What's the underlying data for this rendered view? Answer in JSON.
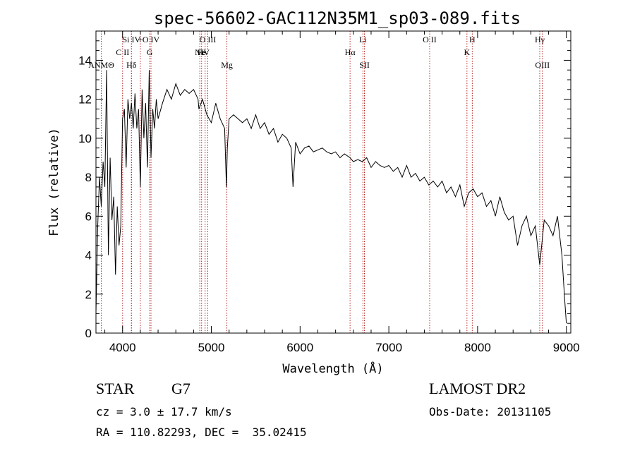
{
  "chart_data": {
    "type": "line",
    "title": "spec-56602-GAC112N35M1_sp03-089.fits",
    "xlabel": "Wavelength (Å)",
    "ylabel": "Flux (relative)",
    "xlim": [
      3700,
      9050
    ],
    "ylim": [
      0,
      15.5
    ],
    "xticks": [
      4000,
      5000,
      6000,
      7000,
      8000,
      9000
    ],
    "yticks": [
      0,
      2,
      4,
      6,
      8,
      10,
      12,
      14
    ],
    "grid": false,
    "series": [
      {
        "x": [
          3700,
          3720,
          3740,
          3760,
          3780,
          3800,
          3820,
          3840,
          3860,
          3880,
          3900,
          3920,
          3940,
          3960,
          3980,
          4000,
          4020,
          4040,
          4060,
          4080,
          4100,
          4120,
          4140,
          4160,
          4180,
          4200,
          4220,
          4240,
          4260,
          4280,
          4300,
          4320,
          4340,
          4360,
          4380,
          4400,
          4450,
          4500,
          4550,
          4600,
          4650,
          4700,
          4750,
          4800,
          4850,
          4860,
          4900,
          4950,
          5000,
          5050,
          5100,
          5150,
          5170,
          5180,
          5200,
          5250,
          5300,
          5350,
          5400,
          5450,
          5500,
          5550,
          5600,
          5650,
          5700,
          5750,
          5800,
          5850,
          5900,
          5920,
          5950,
          6000,
          6050,
          6100,
          6150,
          6200,
          6250,
          6300,
          6350,
          6400,
          6450,
          6500,
          6563,
          6600,
          6650,
          6700,
          6750,
          6800,
          6850,
          6900,
          6950,
          7000,
          7050,
          7100,
          7150,
          7200,
          7250,
          7300,
          7350,
          7400,
          7450,
          7500,
          7550,
          7600,
          7650,
          7700,
          7750,
          7800,
          7850,
          7900,
          7950,
          8000,
          8050,
          8100,
          8150,
          8200,
          8250,
          8300,
          8350,
          8400,
          8450,
          8500,
          8550,
          8600,
          8650,
          8700,
          8750,
          8800,
          8850,
          8900,
          8950,
          8980,
          9000
        ],
        "y": [
          1.0,
          5.5,
          8.0,
          6.5,
          8.8,
          7.5,
          13.5,
          4.0,
          9.0,
          5.8,
          7.0,
          3.0,
          6.5,
          4.5,
          5.5,
          11.0,
          11.5,
          8.5,
          12.0,
          11.0,
          11.8,
          10.5,
          12.3,
          10.5,
          11.5,
          7.5,
          12.5,
          10.0,
          11.8,
          8.5,
          13.5,
          9.0,
          11.5,
          10.5,
          12.0,
          11.0,
          11.8,
          12.5,
          12.0,
          12.8,
          12.2,
          12.5,
          12.3,
          12.5,
          12.0,
          11.5,
          12.0,
          11.2,
          10.8,
          11.8,
          11.0,
          10.5,
          7.5,
          9.5,
          11.0,
          11.2,
          11.0,
          10.8,
          11.0,
          10.5,
          11.2,
          10.5,
          10.8,
          10.2,
          10.5,
          9.8,
          10.2,
          10.0,
          9.5,
          7.5,
          9.8,
          9.2,
          9.5,
          9.6,
          9.3,
          9.4,
          9.5,
          9.3,
          9.2,
          9.3,
          9.0,
          9.2,
          9.0,
          8.8,
          8.9,
          8.8,
          9.0,
          8.5,
          8.8,
          8.6,
          8.5,
          8.6,
          8.3,
          8.5,
          8.0,
          8.6,
          8.0,
          8.2,
          7.8,
          8.0,
          7.6,
          7.8,
          7.5,
          7.8,
          7.2,
          7.5,
          7.0,
          7.6,
          6.5,
          7.2,
          7.4,
          7.0,
          7.2,
          6.5,
          6.8,
          6.0,
          7.0,
          6.2,
          5.8,
          6.0,
          4.5,
          5.5,
          6.0,
          5.0,
          5.5,
          3.5,
          5.8,
          5.5,
          5.0,
          6.0,
          4.0,
          1.8,
          0.5
        ]
      }
    ],
    "line_markers": [
      {
        "label": "Si IV",
        "wl": 4100,
        "row": 0
      },
      {
        "label": "+",
        "wl": 4200,
        "row": 0
      },
      {
        "label": "O IV",
        "wl": 4320,
        "row": 0
      },
      {
        "label": "O III",
        "wl": 4960,
        "row": 0
      },
      {
        "label": "Li",
        "wl": 6708,
        "row": 0
      },
      {
        "label": "O II",
        "wl": 7460,
        "row": 0
      },
      {
        "label": "H",
        "wl": 7940,
        "row": 0
      },
      {
        "label": "Hγ",
        "wl": 8700,
        "row": 0
      },
      {
        "label": "C II",
        "wl": 4000,
        "row": 1
      },
      {
        "label": "G",
        "wl": 4305,
        "row": 1
      },
      {
        "label": "Ne",
        "wl": 4870,
        "row": 1
      },
      {
        "label": "Fe",
        "wl": 4890,
        "row": 1
      },
      {
        "label": "IV",
        "wl": 4930,
        "row": 1
      },
      {
        "label": "Hα",
        "wl": 6563,
        "row": 1
      },
      {
        "label": "K",
        "wl": 7880,
        "row": 1
      },
      {
        "label": "ΑΝΜΘ",
        "wl": 3760,
        "row": 2
      },
      {
        "label": "Hδ",
        "wl": 4100,
        "row": 2
      },
      {
        "label": "Mg",
        "wl": 5175,
        "row": 2
      },
      {
        "label": "SII",
        "wl": 6725,
        "row": 2
      },
      {
        "label": "OIII",
        "wl": 8730,
        "row": 2
      }
    ]
  },
  "info": {
    "object_class": "STAR",
    "subclass": "G7",
    "redshift_text": "cz = 3.0 ± 17.7 km/s",
    "coords_text": "RA = 110.82293, DEC =  35.02415",
    "survey": "LAMOST DR2",
    "obs_date_text": "Obs-Date: 20131105"
  }
}
